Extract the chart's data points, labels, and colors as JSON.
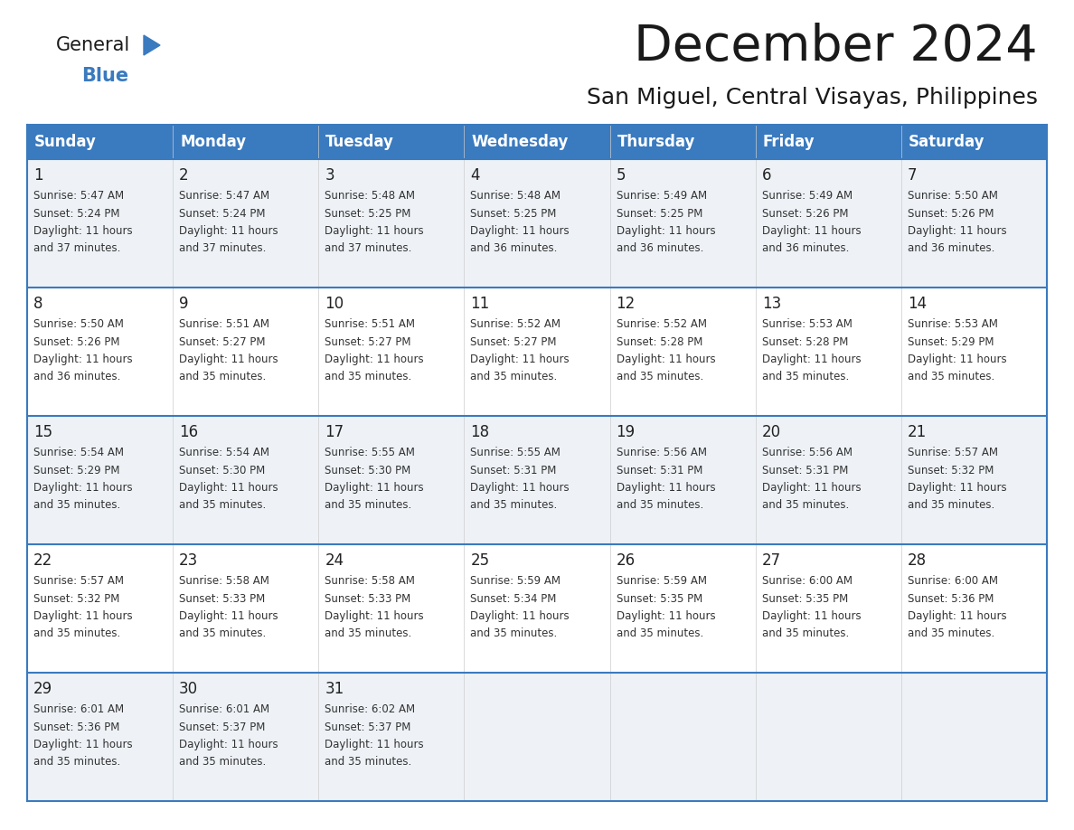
{
  "title": "December 2024",
  "subtitle": "San Miguel, Central Visayas, Philippines",
  "header_color": "#3a7abf",
  "header_text_color": "#ffffff",
  "cell_bg_even": "#eef2f7",
  "cell_bg_odd": "#ffffff",
  "border_color": "#3a7abf",
  "cell_border_color": "#aaaaaa",
  "text_color": "#222222",
  "sub_text_color": "#333333",
  "day_names": [
    "Sunday",
    "Monday",
    "Tuesday",
    "Wednesday",
    "Thursday",
    "Friday",
    "Saturday"
  ],
  "days": [
    {
      "day": 1,
      "col": 0,
      "row": 0,
      "sunrise": "5:47 AM",
      "sunset": "5:24 PM",
      "daylight_h": "11 hours",
      "daylight_m": "and 37 minutes."
    },
    {
      "day": 2,
      "col": 1,
      "row": 0,
      "sunrise": "5:47 AM",
      "sunset": "5:24 PM",
      "daylight_h": "11 hours",
      "daylight_m": "and 37 minutes."
    },
    {
      "day": 3,
      "col": 2,
      "row": 0,
      "sunrise": "5:48 AM",
      "sunset": "5:25 PM",
      "daylight_h": "11 hours",
      "daylight_m": "and 37 minutes."
    },
    {
      "day": 4,
      "col": 3,
      "row": 0,
      "sunrise": "5:48 AM",
      "sunset": "5:25 PM",
      "daylight_h": "11 hours",
      "daylight_m": "and 36 minutes."
    },
    {
      "day": 5,
      "col": 4,
      "row": 0,
      "sunrise": "5:49 AM",
      "sunset": "5:25 PM",
      "daylight_h": "11 hours",
      "daylight_m": "and 36 minutes."
    },
    {
      "day": 6,
      "col": 5,
      "row": 0,
      "sunrise": "5:49 AM",
      "sunset": "5:26 PM",
      "daylight_h": "11 hours",
      "daylight_m": "and 36 minutes."
    },
    {
      "day": 7,
      "col": 6,
      "row": 0,
      "sunrise": "5:50 AM",
      "sunset": "5:26 PM",
      "daylight_h": "11 hours",
      "daylight_m": "and 36 minutes."
    },
    {
      "day": 8,
      "col": 0,
      "row": 1,
      "sunrise": "5:50 AM",
      "sunset": "5:26 PM",
      "daylight_h": "11 hours",
      "daylight_m": "and 36 minutes."
    },
    {
      "day": 9,
      "col": 1,
      "row": 1,
      "sunrise": "5:51 AM",
      "sunset": "5:27 PM",
      "daylight_h": "11 hours",
      "daylight_m": "and 35 minutes."
    },
    {
      "day": 10,
      "col": 2,
      "row": 1,
      "sunrise": "5:51 AM",
      "sunset": "5:27 PM",
      "daylight_h": "11 hours",
      "daylight_m": "and 35 minutes."
    },
    {
      "day": 11,
      "col": 3,
      "row": 1,
      "sunrise": "5:52 AM",
      "sunset": "5:27 PM",
      "daylight_h": "11 hours",
      "daylight_m": "and 35 minutes."
    },
    {
      "day": 12,
      "col": 4,
      "row": 1,
      "sunrise": "5:52 AM",
      "sunset": "5:28 PM",
      "daylight_h": "11 hours",
      "daylight_m": "and 35 minutes."
    },
    {
      "day": 13,
      "col": 5,
      "row": 1,
      "sunrise": "5:53 AM",
      "sunset": "5:28 PM",
      "daylight_h": "11 hours",
      "daylight_m": "and 35 minutes."
    },
    {
      "day": 14,
      "col": 6,
      "row": 1,
      "sunrise": "5:53 AM",
      "sunset": "5:29 PM",
      "daylight_h": "11 hours",
      "daylight_m": "and 35 minutes."
    },
    {
      "day": 15,
      "col": 0,
      "row": 2,
      "sunrise": "5:54 AM",
      "sunset": "5:29 PM",
      "daylight_h": "11 hours",
      "daylight_m": "and 35 minutes."
    },
    {
      "day": 16,
      "col": 1,
      "row": 2,
      "sunrise": "5:54 AM",
      "sunset": "5:30 PM",
      "daylight_h": "11 hours",
      "daylight_m": "and 35 minutes."
    },
    {
      "day": 17,
      "col": 2,
      "row": 2,
      "sunrise": "5:55 AM",
      "sunset": "5:30 PM",
      "daylight_h": "11 hours",
      "daylight_m": "and 35 minutes."
    },
    {
      "day": 18,
      "col": 3,
      "row": 2,
      "sunrise": "5:55 AM",
      "sunset": "5:31 PM",
      "daylight_h": "11 hours",
      "daylight_m": "and 35 minutes."
    },
    {
      "day": 19,
      "col": 4,
      "row": 2,
      "sunrise": "5:56 AM",
      "sunset": "5:31 PM",
      "daylight_h": "11 hours",
      "daylight_m": "and 35 minutes."
    },
    {
      "day": 20,
      "col": 5,
      "row": 2,
      "sunrise": "5:56 AM",
      "sunset": "5:31 PM",
      "daylight_h": "11 hours",
      "daylight_m": "and 35 minutes."
    },
    {
      "day": 21,
      "col": 6,
      "row": 2,
      "sunrise": "5:57 AM",
      "sunset": "5:32 PM",
      "daylight_h": "11 hours",
      "daylight_m": "and 35 minutes."
    },
    {
      "day": 22,
      "col": 0,
      "row": 3,
      "sunrise": "5:57 AM",
      "sunset": "5:32 PM",
      "daylight_h": "11 hours",
      "daylight_m": "and 35 minutes."
    },
    {
      "day": 23,
      "col": 1,
      "row": 3,
      "sunrise": "5:58 AM",
      "sunset": "5:33 PM",
      "daylight_h": "11 hours",
      "daylight_m": "and 35 minutes."
    },
    {
      "day": 24,
      "col": 2,
      "row": 3,
      "sunrise": "5:58 AM",
      "sunset": "5:33 PM",
      "daylight_h": "11 hours",
      "daylight_m": "and 35 minutes."
    },
    {
      "day": 25,
      "col": 3,
      "row": 3,
      "sunrise": "5:59 AM",
      "sunset": "5:34 PM",
      "daylight_h": "11 hours",
      "daylight_m": "and 35 minutes."
    },
    {
      "day": 26,
      "col": 4,
      "row": 3,
      "sunrise": "5:59 AM",
      "sunset": "5:35 PM",
      "daylight_h": "11 hours",
      "daylight_m": "and 35 minutes."
    },
    {
      "day": 27,
      "col": 5,
      "row": 3,
      "sunrise": "6:00 AM",
      "sunset": "5:35 PM",
      "daylight_h": "11 hours",
      "daylight_m": "and 35 minutes."
    },
    {
      "day": 28,
      "col": 6,
      "row": 3,
      "sunrise": "6:00 AM",
      "sunset": "5:36 PM",
      "daylight_h": "11 hours",
      "daylight_m": "and 35 minutes."
    },
    {
      "day": 29,
      "col": 0,
      "row": 4,
      "sunrise": "6:01 AM",
      "sunset": "5:36 PM",
      "daylight_h": "11 hours",
      "daylight_m": "and 35 minutes."
    },
    {
      "day": 30,
      "col": 1,
      "row": 4,
      "sunrise": "6:01 AM",
      "sunset": "5:37 PM",
      "daylight_h": "11 hours",
      "daylight_m": "and 35 minutes."
    },
    {
      "day": 31,
      "col": 2,
      "row": 4,
      "sunrise": "6:02 AM",
      "sunset": "5:37 PM",
      "daylight_h": "11 hours",
      "daylight_m": "and 35 minutes."
    }
  ]
}
